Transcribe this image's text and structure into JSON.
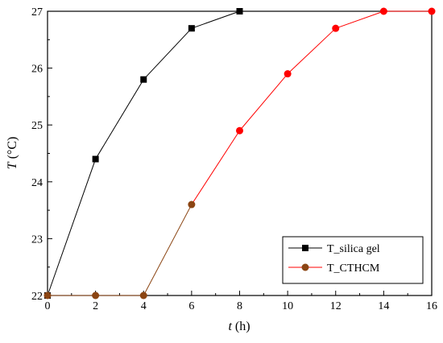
{
  "chart_data": {
    "type": "line",
    "xlabel": {
      "var": "t",
      "unit": " (h)"
    },
    "ylabel": {
      "var": "T",
      "unit": " (°C)"
    },
    "xlim": [
      0,
      16
    ],
    "ylim": [
      22,
      27
    ],
    "xticks": [
      "0",
      "2",
      "4",
      "6",
      "8",
      "10",
      "12",
      "14",
      "16"
    ],
    "yticks": [
      "22",
      "23",
      "24",
      "25",
      "26",
      "27"
    ],
    "grid": false,
    "legend_position": "bottom-right",
    "series": [
      {
        "name": "T_silica gel",
        "color": "#000000",
        "marker": "square",
        "x": [
          0,
          2,
          4,
          6,
          8
        ],
        "y": [
          22.0,
          24.4,
          25.8,
          26.7,
          27.0
        ]
      },
      {
        "name": "T_CTHCM",
        "color": "#ff0000",
        "marker": "circle",
        "x": [
          0,
          2,
          4,
          6,
          8,
          10,
          12,
          14,
          16
        ],
        "y": [
          22.0,
          22.0,
          22.0,
          23.6,
          24.9,
          25.9,
          26.7,
          27.0,
          27.0
        ],
        "segment_colors": [
          "#8b4513",
          "#8b4513",
          "#8b4513",
          "#ff0000",
          "#ff0000",
          "#ff0000",
          "#ff0000",
          "#ff0000"
        ],
        "marker_colors": [
          "#8b4513",
          "#8b4513",
          "#8b4513",
          "#8b4513",
          "#ff0000",
          "#ff0000",
          "#ff0000",
          "#ff0000",
          "#ff0000"
        ]
      }
    ]
  }
}
